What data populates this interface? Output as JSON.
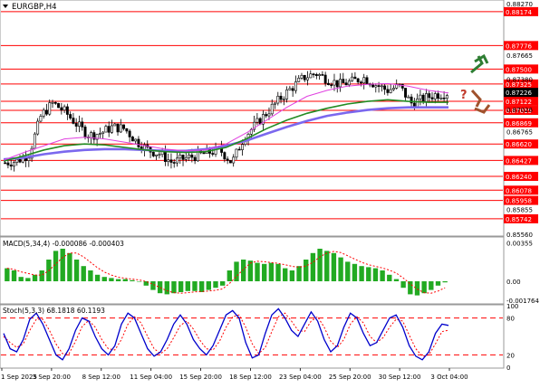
{
  "symbol_label": "EURGBP,H4",
  "macd_label": "MACD(5,34,4) -0.000086 -0.000403",
  "stoch_label": "Stoch(5,3,3) 68.1818 60.1193",
  "question_mark": "?",
  "colors": {
    "background": "#ffffff",
    "bull_candle": "#ffffff",
    "bear_candle": "#000000",
    "ma_fast": "#e040e0",
    "ma_mid": "#228b22",
    "ma_slow": "#7b68ee",
    "level_line": "#ff0000",
    "level_label_bg": "#ff0000",
    "current_price_bg": "#000000",
    "macd_hist": "#22aa22",
    "macd_signal": "#ff0000",
    "stoch_main": "#0000cc",
    "stoch_signal": "#ff0000",
    "arrow_up": "#2e7d32",
    "arrow_down": "#a0522d"
  },
  "chart_data": [
    {
      "type": "candlestick",
      "title": "EURGBP,H4",
      "x_tick_labels": [
        "1 Sep 2025",
        "3 Sep 20:00",
        "8 Sep 12:00",
        "11 Sep 04:00",
        "15 Sep 20:00",
        "18 Sep 12:00",
        "23 Sep 04:00",
        "25 Sep 20:00",
        "30 Sep 12:00",
        "3 Oct 04:00"
      ],
      "ylim": [
        0.8555,
        0.883
      ],
      "y_tick_labels": [
        "0.88270",
        "0.87665",
        "0.87380",
        "0.87026",
        "0.86765",
        "0.85855",
        "0.85560"
      ],
      "levels": [
        "0.88174",
        "0.87776",
        "0.87500",
        "0.87325",
        "0.87122",
        "0.87015",
        "0.86869",
        "0.86620",
        "0.86427",
        "0.86240",
        "0.86078",
        "0.85958",
        "0.85742"
      ],
      "current_price": "0.87226",
      "price_path": [
        0.864,
        0.8642,
        0.865,
        0.8695,
        0.871,
        0.87,
        0.8685,
        0.8672,
        0.8675,
        0.8682,
        0.868,
        0.8665,
        0.8655,
        0.865,
        0.864,
        0.8645,
        0.8648,
        0.8652,
        0.8655,
        0.864,
        0.867,
        0.8685,
        0.87,
        0.8715,
        0.8728,
        0.874,
        0.8745,
        0.8738,
        0.8732,
        0.8735,
        0.874,
        0.8732,
        0.8725,
        0.873,
        0.871,
        0.8715,
        0.872,
        0.8722
      ],
      "ma_fast": [
        0.8643,
        0.8652,
        0.866,
        0.8668,
        0.867,
        0.8668,
        0.8664,
        0.866,
        0.8656,
        0.8654,
        0.8655,
        0.8662,
        0.8675,
        0.869,
        0.8705,
        0.8718,
        0.8725,
        0.873,
        0.8732,
        0.8733,
        0.873,
        0.8725,
        0.8722
      ],
      "ma_mid": [
        0.8642,
        0.8648,
        0.8655,
        0.866,
        0.8662,
        0.8661,
        0.8658,
        0.8655,
        0.8653,
        0.8652,
        0.8653,
        0.8658,
        0.8668,
        0.868,
        0.869,
        0.8698,
        0.8704,
        0.8709,
        0.8712,
        0.8714,
        0.8712,
        0.8711,
        0.8711
      ],
      "ma_slow": [
        0.8644,
        0.8646,
        0.865,
        0.8653,
        0.8655,
        0.8656,
        0.8656,
        0.8655,
        0.8654,
        0.8654,
        0.8656,
        0.866,
        0.8666,
        0.8674,
        0.8682,
        0.8689,
        0.8695,
        0.8699,
        0.8702,
        0.8704,
        0.8705,
        0.8705,
        0.8705
      ]
    },
    {
      "type": "bar",
      "title": "MACD(5,34,4) -0.000086 -0.000403",
      "ylim": [
        -0.002,
        0.004
      ],
      "y_tick_labels": [
        "0.00355",
        "0.00",
        "-0.001764"
      ],
      "values": [
        0.0012,
        0.001,
        0.0004,
        0.0003,
        0.0006,
        0.001,
        0.002,
        0.0028,
        0.003,
        0.0026,
        0.002,
        0.0014,
        0.001,
        0.0006,
        0.0004,
        0.0003,
        0.0002,
        0.0002,
        0.0001,
        0.0,
        -0.0004,
        -0.0008,
        -0.0011,
        -0.0012,
        -0.0011,
        -0.001,
        -0.0009,
        -0.0009,
        -0.001,
        -0.0008,
        -0.0006,
        -0.0004,
        0.001,
        0.0018,
        0.002,
        0.0019,
        0.0017,
        0.0016,
        0.0017,
        0.0016,
        0.0012,
        0.001,
        0.0014,
        0.002,
        0.0026,
        0.003,
        0.0028,
        0.0026,
        0.0022,
        0.0018,
        0.0016,
        0.0014,
        0.0013,
        0.0012,
        0.001,
        0.0006,
        0.0002,
        -0.0006,
        -0.0012,
        -0.0013,
        -0.0011,
        -0.0008,
        -0.0004,
        -0.0001
      ]
    },
    {
      "type": "line",
      "title": "Stoch(5,3,3) 68.1818 60.1193",
      "ylim": [
        0,
        100
      ],
      "y_tick_labels": [
        "100",
        "80",
        "20",
        "0"
      ],
      "levels": [
        80,
        20
      ],
      "series": [
        {
          "values": [
            55,
            30,
            25,
            45,
            78,
            88,
            70,
            45,
            20,
            12,
            30,
            60,
            80,
            75,
            50,
            30,
            20,
            35,
            70,
            88,
            80,
            55,
            30,
            18,
            25,
            45,
            70,
            85,
            70,
            45,
            30,
            20,
            35,
            60,
            85,
            92,
            80,
            40,
            15,
            20,
            55,
            85,
            95,
            80,
            60,
            50,
            70,
            90,
            75,
            45,
            25,
            35,
            65,
            88,
            80,
            55,
            35,
            40,
            60,
            80,
            85,
            65,
            35,
            18,
            12,
            25,
            55,
            70,
            68
          ]
        },
        {
          "values": [
            50,
            40,
            32,
            38,
            60,
            78,
            78,
            60,
            38,
            22,
            22,
            42,
            66,
            76,
            65,
            45,
            30,
            28,
            45,
            70,
            82,
            72,
            50,
            30,
            22,
            30,
            48,
            68,
            75,
            62,
            44,
            30,
            28,
            42,
            65,
            82,
            85,
            65,
            38,
            22,
            32,
            58,
            82,
            88,
            75,
            60,
            58,
            75,
            82,
            65,
            42,
            32,
            45,
            70,
            82,
            72,
            50,
            40,
            48,
            65,
            78,
            75,
            52,
            30,
            18,
            20,
            38,
            58,
            60
          ]
        }
      ]
    }
  ]
}
